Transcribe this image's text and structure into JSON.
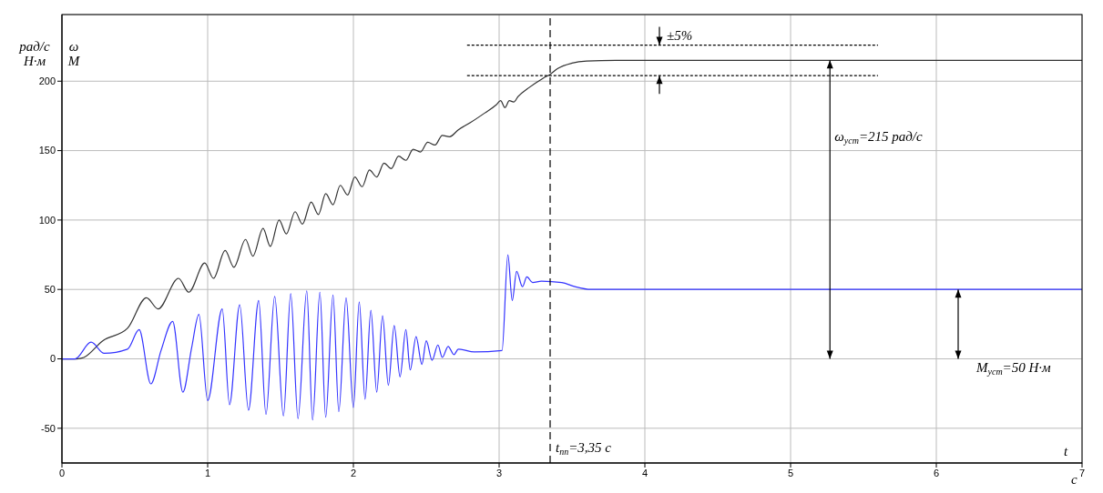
{
  "chart_data": {
    "type": "line",
    "xlabel": "t",
    "ylabel": "рад/с Н·м",
    "xlim": [
      0,
      7
    ],
    "xticks": [
      0,
      1,
      2,
      3,
      4,
      5,
      6,
      7
    ],
    "ylim": [
      -75,
      248
    ],
    "yticks": [
      -50,
      0,
      50,
      100,
      150,
      200
    ],
    "grid": true,
    "marker": "none",
    "series": [
      {
        "color": "#333333",
        "x": [
          0,
          0.1,
          0.15,
          0.28,
          0.45,
          0.58,
          0.66,
          0.8,
          0.87,
          0.98,
          1.04,
          1.12,
          1.18,
          1.26,
          1.31,
          1.38,
          1.43,
          1.49,
          1.54,
          1.6,
          1.65,
          1.71,
          1.76,
          1.81,
          1.86,
          1.91,
          1.96,
          2.01,
          2.06,
          2.11,
          2.16,
          2.21,
          2.26,
          2.31,
          2.36,
          2.41,
          2.46,
          2.51,
          2.56,
          2.61,
          2.66,
          2.72,
          2.8,
          2.9,
          2.98,
          3.01,
          3.04,
          3.07,
          3.1,
          3.13,
          3.2,
          3.3,
          3.35,
          3.4,
          3.5,
          3.6,
          3.8,
          7
        ],
        "values": [
          0,
          0,
          1,
          13,
          22,
          44,
          36,
          58,
          48,
          69,
          58,
          78,
          66,
          86,
          74,
          94,
          81,
          100,
          90,
          106,
          97,
          113,
          104,
          119,
          111,
          125,
          118,
          131,
          124,
          136,
          131,
          141,
          137,
          146,
          143,
          151,
          149,
          156,
          154,
          161,
          160,
          165,
          170,
          177,
          183,
          186,
          181,
          186,
          185,
          189,
          195,
          202,
          205,
          209,
          213,
          214.5,
          215,
          215
        ]
      },
      {
        "color": "#3333ff",
        "x": [
          0,
          0.09,
          0.2,
          0.29,
          0.45,
          0.53,
          0.61,
          0.68,
          0.76,
          0.83,
          0.89,
          0.94,
          1.0,
          1.1,
          1.15,
          1.22,
          1.28,
          1.35,
          1.4,
          1.46,
          1.52,
          1.57,
          1.62,
          1.68,
          1.72,
          1.77,
          1.81,
          1.86,
          1.9,
          1.95,
          2.0,
          2.04,
          2.08,
          2.12,
          2.16,
          2.2,
          2.24,
          2.28,
          2.32,
          2.36,
          2.39,
          2.43,
          2.47,
          2.5,
          2.54,
          2.58,
          2.61,
          2.65,
          2.69,
          2.72,
          2.83,
          3.02,
          3.06,
          3.09,
          3.12,
          3.16,
          3.19,
          3.23,
          3.29,
          3.43,
          3.52,
          3.63,
          7
        ],
        "values": [
          0,
          0,
          12,
          4,
          7,
          21,
          -18,
          6,
          27,
          -24,
          8,
          32,
          -30,
          36,
          -33,
          39,
          -37,
          42,
          -40,
          45,
          -41,
          47,
          -43,
          49,
          -44,
          48,
          -42,
          46,
          -38,
          44,
          -35,
          41,
          -29,
          35,
          -24,
          31,
          -19,
          24,
          -13,
          21,
          -8,
          16,
          -4,
          13,
          -1,
          10,
          1,
          9,
          3,
          7,
          5,
          6,
          75,
          42,
          63,
          52,
          59,
          55,
          56,
          55,
          52,
          50,
          50
        ]
      },
      {
        "color": "#000000",
        "line_style": "dotted",
        "x": [
          2.78,
          5.6
        ],
        "values": [
          226,
          226
        ]
      },
      {
        "color": "#000000",
        "line_style": "dotted",
        "x": [
          2.78,
          5.6
        ],
        "values": [
          204,
          204
        ]
      }
    ],
    "ref_lines": [
      {
        "axis": "x",
        "value": 3.35,
        "label": "t$_{пп}$=3,35 с",
        "color": "#000000",
        "line_style": "dashed"
      }
    ],
    "annotations": [
      "ω M",
      "с",
      "±5%",
      "ω$_{уст}$=215 рад/с",
      "M$_{уст}$=50 Н·м"
    ]
  }
}
